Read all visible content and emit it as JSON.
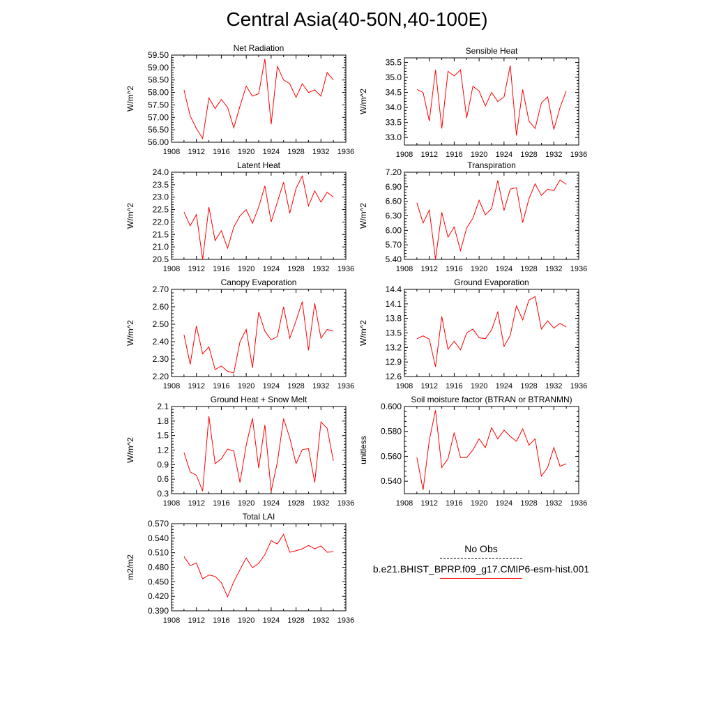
{
  "title": "Central Asia(40-50N,40-100E)",
  "legend": {
    "obs_label": "No Obs",
    "model_label": "b.e21.BHIST_BPRP.f09_g17.CMIP6-esm-hist.001",
    "obs_color": "#000000",
    "model_color": "#ff0000"
  },
  "chart_data": [
    {
      "type": "line",
      "title": "Net Radiation",
      "ylabel": "W/m^2",
      "x": [
        1910,
        1911,
        1912,
        1913,
        1914,
        1915,
        1916,
        1917,
        1918,
        1919,
        1920,
        1921,
        1922,
        1923,
        1924,
        1925,
        1926,
        1927,
        1928,
        1929,
        1930,
        1931,
        1932,
        1933,
        1934
      ],
      "xlim": [
        1908,
        1936
      ],
      "xticks": [
        1908,
        1912,
        1916,
        1920,
        1924,
        1928,
        1932,
        1936
      ],
      "ylim": [
        56.0,
        59.5
      ],
      "yticks": [
        "56.00",
        "56.50",
        "57.00",
        "57.50",
        "58.00",
        "58.50",
        "59.00",
        "59.50"
      ],
      "series": [
        {
          "color": "#ff0000",
          "values": [
            58.1,
            57.05,
            56.55,
            56.15,
            57.78,
            57.35,
            57.72,
            57.4,
            56.58,
            57.45,
            58.25,
            57.85,
            57.95,
            59.35,
            56.72,
            59.05,
            58.5,
            58.35,
            57.8,
            58.35,
            58.0,
            58.1,
            57.85,
            58.8,
            58.5
          ]
        }
      ]
    },
    {
      "type": "line",
      "title": "Sensible Heat",
      "ylabel": "W/m^2",
      "x": [
        1910,
        1911,
        1912,
        1913,
        1914,
        1915,
        1916,
        1917,
        1918,
        1919,
        1920,
        1921,
        1922,
        1923,
        1924,
        1925,
        1926,
        1927,
        1928,
        1929,
        1930,
        1931,
        1932,
        1933,
        1934
      ],
      "xlim": [
        1908,
        1936
      ],
      "xticks": [
        1908,
        1912,
        1916,
        1920,
        1924,
        1928,
        1932,
        1936
      ],
      "ylim": [
        32.75,
        35.65
      ],
      "yticks": [
        "33.0",
        "33.5",
        "34.0",
        "34.5",
        "35.0",
        "35.5"
      ],
      "series": [
        {
          "color": "#ff0000",
          "values": [
            34.6,
            34.5,
            33.55,
            35.25,
            33.3,
            35.2,
            35.05,
            35.25,
            33.65,
            34.7,
            34.55,
            34.05,
            34.5,
            34.2,
            34.35,
            35.4,
            33.07,
            34.6,
            33.55,
            33.3,
            34.15,
            34.35,
            33.27,
            34.0,
            34.55
          ]
        }
      ]
    },
    {
      "type": "line",
      "title": "Latent Heat",
      "ylabel": "W/m^2",
      "x": [
        1910,
        1911,
        1912,
        1913,
        1914,
        1915,
        1916,
        1917,
        1918,
        1919,
        1920,
        1921,
        1922,
        1923,
        1924,
        1925,
        1926,
        1927,
        1928,
        1929,
        1930,
        1931,
        1932,
        1933,
        1934
      ],
      "xlim": [
        1908,
        1936
      ],
      "xticks": [
        1908,
        1912,
        1916,
        1920,
        1924,
        1928,
        1932,
        1936
      ],
      "ylim": [
        20.5,
        24.0
      ],
      "yticks": [
        "20.5",
        "21.0",
        "21.5",
        "22.0",
        "22.5",
        "23.0",
        "23.5",
        "24.0"
      ],
      "series": [
        {
          "color": "#ff0000",
          "values": [
            22.4,
            21.85,
            22.3,
            20.5,
            22.6,
            21.25,
            21.65,
            20.95,
            21.8,
            22.25,
            22.5,
            21.95,
            22.6,
            23.45,
            22.0,
            22.8,
            23.6,
            22.35,
            23.35,
            23.85,
            22.65,
            23.25,
            22.8,
            23.2,
            23.0
          ]
        }
      ]
    },
    {
      "type": "line",
      "title": "Transpiration",
      "ylabel": "W/m^2",
      "x": [
        1910,
        1911,
        1912,
        1913,
        1914,
        1915,
        1916,
        1917,
        1918,
        1919,
        1920,
        1921,
        1922,
        1923,
        1924,
        1925,
        1926,
        1927,
        1928,
        1929,
        1930,
        1931,
        1932,
        1933,
        1934
      ],
      "xlim": [
        1908,
        1936
      ],
      "xticks": [
        1908,
        1912,
        1916,
        1920,
        1924,
        1928,
        1932,
        1936
      ],
      "ylim": [
        5.4,
        7.2
      ],
      "yticks": [
        "5.40",
        "5.70",
        "6.00",
        "6.30",
        "6.60",
        "6.90",
        "7.20"
      ],
      "series": [
        {
          "color": "#ff0000",
          "values": [
            6.57,
            6.15,
            6.42,
            5.4,
            6.37,
            5.86,
            6.07,
            5.58,
            6.05,
            6.25,
            6.62,
            6.32,
            6.45,
            7.03,
            6.41,
            6.85,
            6.88,
            6.16,
            6.65,
            6.96,
            6.72,
            6.85,
            6.82,
            7.04,
            6.95
          ]
        }
      ]
    },
    {
      "type": "line",
      "title": "Canopy Evaporation",
      "ylabel": "W/m^2",
      "x": [
        1910,
        1911,
        1912,
        1913,
        1914,
        1915,
        1916,
        1917,
        1918,
        1919,
        1920,
        1921,
        1922,
        1923,
        1924,
        1925,
        1926,
        1927,
        1928,
        1929,
        1930,
        1931,
        1932,
        1933,
        1934
      ],
      "xlim": [
        1908,
        1936
      ],
      "xticks": [
        1908,
        1912,
        1916,
        1920,
        1924,
        1928,
        1932,
        1936
      ],
      "ylim": [
        2.2,
        2.7
      ],
      "yticks": [
        "2.20",
        "2.30",
        "2.40",
        "2.50",
        "2.60",
        "2.70"
      ],
      "series": [
        {
          "color": "#ff0000",
          "values": [
            2.44,
            2.27,
            2.49,
            2.33,
            2.37,
            2.24,
            2.26,
            2.23,
            2.22,
            2.4,
            2.47,
            2.25,
            2.57,
            2.46,
            2.41,
            2.43,
            2.6,
            2.42,
            2.52,
            2.63,
            2.35,
            2.62,
            2.42,
            2.47,
            2.46
          ]
        }
      ]
    },
    {
      "type": "line",
      "title": "Ground Evaporation",
      "ylabel": "W/m^2",
      "x": [
        1910,
        1911,
        1912,
        1913,
        1914,
        1915,
        1916,
        1917,
        1918,
        1919,
        1920,
        1921,
        1922,
        1923,
        1924,
        1925,
        1926,
        1927,
        1928,
        1929,
        1930,
        1931,
        1932,
        1933,
        1934
      ],
      "xlim": [
        1908,
        1936
      ],
      "xticks": [
        1908,
        1912,
        1916,
        1920,
        1924,
        1928,
        1932,
        1936
      ],
      "ylim": [
        12.6,
        14.4
      ],
      "yticks": [
        "12.6",
        "12.9",
        "13.2",
        "13.5",
        "13.8",
        "14.1",
        "14.4"
      ],
      "series": [
        {
          "color": "#ff0000",
          "values": [
            13.38,
            13.44,
            13.37,
            12.8,
            13.84,
            13.16,
            13.33,
            13.15,
            13.5,
            13.58,
            13.4,
            13.38,
            13.56,
            13.93,
            13.22,
            13.45,
            14.06,
            13.77,
            14.18,
            14.25,
            13.58,
            13.75,
            13.6,
            13.7,
            13.62
          ]
        }
      ]
    },
    {
      "type": "line",
      "title": "Ground Heat + Snow Melt",
      "ylabel": "W/m^2",
      "x": [
        1910,
        1911,
        1912,
        1913,
        1914,
        1915,
        1916,
        1917,
        1918,
        1919,
        1920,
        1921,
        1922,
        1923,
        1924,
        1925,
        1926,
        1927,
        1928,
        1929,
        1930,
        1931,
        1932,
        1933,
        1934
      ],
      "xlim": [
        1908,
        1936
      ],
      "xticks": [
        1908,
        1912,
        1916,
        1920,
        1924,
        1928,
        1932,
        1936
      ],
      "ylim": [
        0.3,
        2.1
      ],
      "yticks": [
        "0.3",
        "0.6",
        "0.9",
        "1.2",
        "1.5",
        "1.8",
        "2.1"
      ],
      "series": [
        {
          "color": "#ff0000",
          "values": [
            1.15,
            0.75,
            0.68,
            0.35,
            1.9,
            0.92,
            1.02,
            1.22,
            1.18,
            0.53,
            1.3,
            1.86,
            0.83,
            1.72,
            0.35,
            0.95,
            1.85,
            1.45,
            0.92,
            1.21,
            1.23,
            0.53,
            1.78,
            1.65,
            0.98
          ]
        }
      ]
    },
    {
      "type": "line",
      "title": "Soil moisture factor (BTRAN or BTRANMN)",
      "ylabel": "unitless",
      "x": [
        1910,
        1911,
        1912,
        1913,
        1914,
        1915,
        1916,
        1917,
        1918,
        1919,
        1920,
        1921,
        1922,
        1923,
        1924,
        1925,
        1926,
        1927,
        1928,
        1929,
        1930,
        1931,
        1932,
        1933,
        1934
      ],
      "xlim": [
        1908,
        1936
      ],
      "xticks": [
        1908,
        1912,
        1916,
        1920,
        1924,
        1928,
        1932,
        1936
      ],
      "ylim": [
        0.53,
        0.6
      ],
      "yticks": [
        "0.540",
        "0.560",
        "0.580",
        "0.600"
      ],
      "series": [
        {
          "color": "#ff0000",
          "values": [
            0.559,
            0.533,
            0.573,
            0.597,
            0.551,
            0.558,
            0.579,
            0.559,
            0.559,
            0.565,
            0.574,
            0.567,
            0.583,
            0.574,
            0.581,
            0.576,
            0.572,
            0.582,
            0.569,
            0.574,
            0.544,
            0.551,
            0.567,
            0.552,
            0.554
          ]
        }
      ]
    },
    {
      "type": "line",
      "title": "Total LAI",
      "ylabel": "m2/m2",
      "x": [
        1910,
        1911,
        1912,
        1913,
        1914,
        1915,
        1916,
        1917,
        1918,
        1919,
        1920,
        1921,
        1922,
        1923,
        1924,
        1925,
        1926,
        1927,
        1928,
        1929,
        1930,
        1931,
        1932,
        1933,
        1934
      ],
      "xlim": [
        1908,
        1936
      ],
      "xticks": [
        1908,
        1912,
        1916,
        1920,
        1924,
        1928,
        1932,
        1936
      ],
      "ylim": [
        0.39,
        0.57
      ],
      "yticks": [
        "0.390",
        "0.420",
        "0.450",
        "0.480",
        "0.510",
        "0.540",
        "0.570"
      ],
      "series": [
        {
          "color": "#ff0000",
          "values": [
            0.502,
            0.483,
            0.489,
            0.456,
            0.464,
            0.461,
            0.448,
            0.419,
            0.45,
            0.475,
            0.499,
            0.479,
            0.488,
            0.506,
            0.535,
            0.528,
            0.548,
            0.511,
            0.514,
            0.518,
            0.525,
            0.518,
            0.524,
            0.511,
            0.512
          ]
        }
      ]
    }
  ]
}
